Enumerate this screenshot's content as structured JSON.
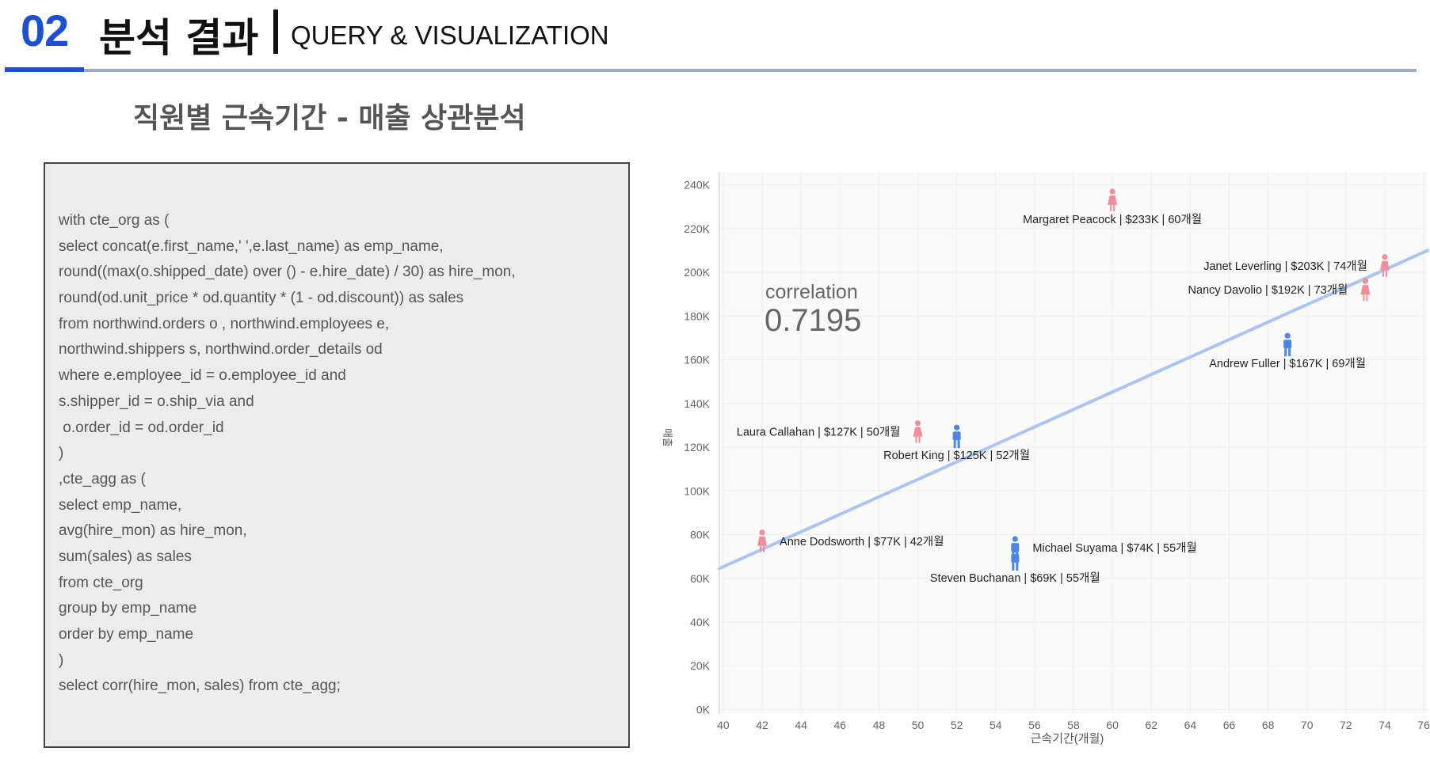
{
  "header": {
    "number": "02",
    "title": "분석 결과",
    "subtitle": "QUERY & VISUALIZATION"
  },
  "section_title": "직원별 근속기간 - 매출 상관분석",
  "code_lines": [
    "with cte_org as (",
    "select concat(e.first_name,' ',e.last_name) as emp_name,",
    "round((max(o.shipped_date) over () - e.hire_date) / 30) as hire_mon,",
    "round(od.unit_price * od.quantity * (1 - od.discount)) as sales",
    "from northwind.orders o , northwind.employees e,",
    "northwind.shippers s, northwind.order_details od",
    "where e.employee_id = o.employee_id and",
    "s.shipper_id = o.ship_via and",
    " o.order_id = od.order_id",
    ")",
    ",cte_agg as (",
    "select emp_name,",
    "avg(hire_mon) as hire_mon,",
    "sum(sales) as sales",
    "from cte_org",
    "group by emp_name",
    "order by emp_name",
    ")",
    "select corr(hire_mon, sales) from cte_agg;"
  ],
  "colors": {
    "accent": "#1c4fd8",
    "female": "#f28e9a",
    "male": "#4a86e8",
    "trend": "#a9c4f5"
  },
  "chart_data": {
    "type": "scatter",
    "xlabel": "근속기간(개월)",
    "ylabel": "매출",
    "xlim": [
      39.8,
      76.2
    ],
    "ylim": [
      -2000,
      246000
    ],
    "xticks": [
      40,
      42,
      44,
      46,
      48,
      50,
      52,
      54,
      56,
      58,
      60,
      62,
      64,
      66,
      68,
      70,
      72,
      74,
      76
    ],
    "yticks": [
      0,
      20000,
      40000,
      60000,
      80000,
      100000,
      120000,
      140000,
      160000,
      180000,
      200000,
      220000,
      240000
    ],
    "ytick_labels": [
      "0K",
      "20K",
      "40K",
      "60K",
      "80K",
      "100K",
      "120K",
      "140K",
      "160K",
      "180K",
      "200K",
      "220K",
      "240K"
    ],
    "annotation": {
      "label": "correlation",
      "value": "0.7195"
    },
    "trendline": {
      "x": [
        39.8,
        76.2
      ],
      "y": [
        64500,
        210000
      ]
    },
    "points": [
      {
        "name": "Margaret Peacock",
        "x": 60,
        "y": 233000,
        "gender": "female",
        "label": "Margaret Peacock | $233K  | 60개월",
        "label_side": "below"
      },
      {
        "name": "Janet Leverling",
        "x": 74,
        "y": 203000,
        "gender": "female",
        "label": "Janet Leverling | $203K  | 74개월",
        "label_side": "left"
      },
      {
        "name": "Nancy Davolio",
        "x": 73,
        "y": 192000,
        "gender": "female",
        "label": "Nancy Davolio | $192K  | 73개월",
        "label_side": "left"
      },
      {
        "name": "Andrew Fuller",
        "x": 69,
        "y": 167000,
        "gender": "male",
        "label": "Andrew Fuller | $167K  | 69개월",
        "label_side": "below"
      },
      {
        "name": "Laura Callahan",
        "x": 50,
        "y": 127000,
        "gender": "female",
        "label": "Laura Callahan | $127K  | 50개월",
        "label_side": "left"
      },
      {
        "name": "Robert King",
        "x": 52,
        "y": 125000,
        "gender": "male",
        "label": "Robert King | $125K  | 52개월",
        "label_side": "below"
      },
      {
        "name": "Anne Dodsworth",
        "x": 42,
        "y": 77000,
        "gender": "female",
        "label": "Anne Dodsworth | $77K  | 42개월",
        "label_side": "right"
      },
      {
        "name": "Michael Suyama",
        "x": 55,
        "y": 74000,
        "gender": "male",
        "label": "Michael Suyama | $74K  | 55개월",
        "label_side": "right"
      },
      {
        "name": "Steven Buchanan",
        "x": 55,
        "y": 69000,
        "gender": "male",
        "label": "Steven Buchanan | $69K  | 55개월",
        "label_side": "below"
      }
    ]
  }
}
